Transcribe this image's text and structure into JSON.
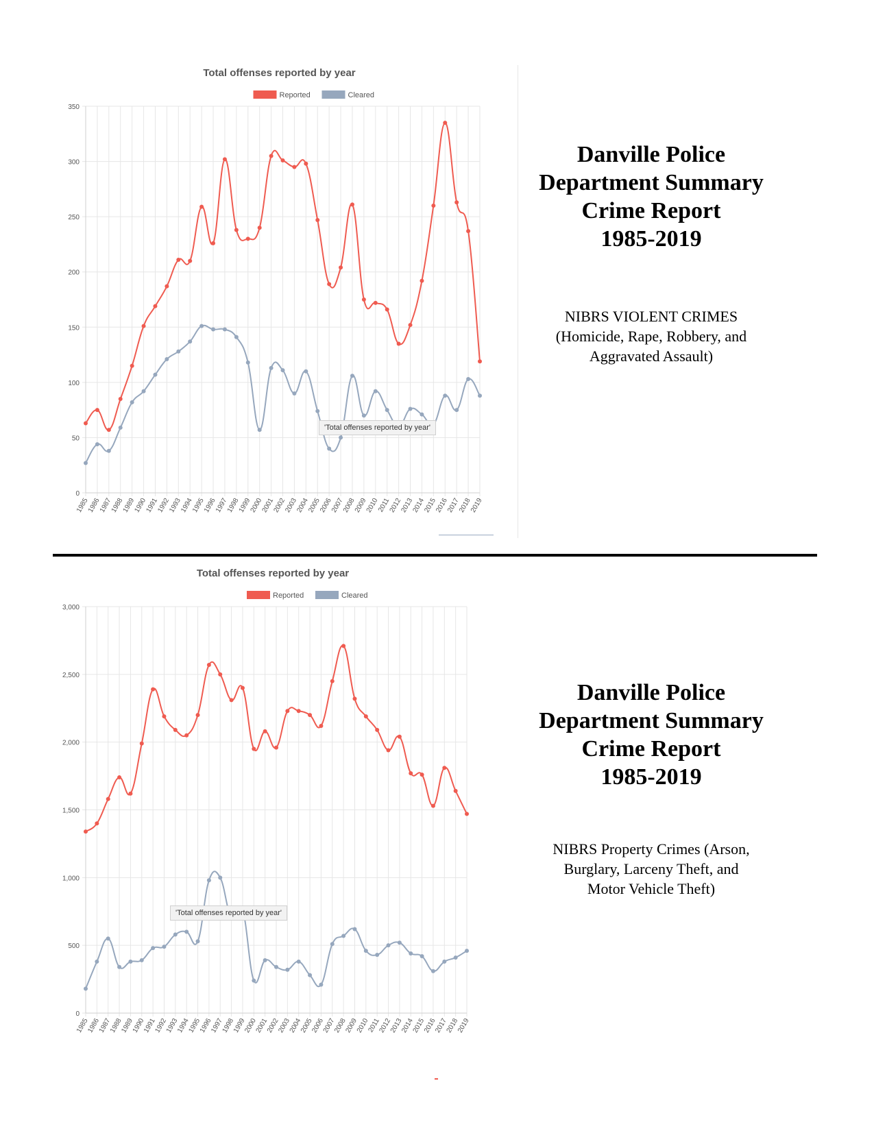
{
  "colors": {
    "reported": "#ef5b50",
    "cleared": "#96a7bd",
    "grid": "#e6e6e6",
    "axis_text": "#555555"
  },
  "panels": [
    {
      "title": "Danville Police Department Summary Crime Report 1985-2019",
      "title_lines": [
        "Danville Police",
        "Department Summary",
        "Crime Report",
        "1985-2019"
      ],
      "subtitle_lines": [
        "NIBRS VIOLENT CRIMES",
        "(Homicide, Rape, Robbery, and",
        "Aggravated Assault)"
      ]
    },
    {
      "title": "Danville Police Department Summary Crime Report 1985-2019",
      "title_lines": [
        "Danville Police",
        "Department Summary",
        "Crime Report",
        "1985-2019"
      ],
      "subtitle_lines": [
        "NIBRS Property Crimes (Arson,",
        "Burglary, Larceny Theft, and",
        "Motor Vehicle Theft)"
      ]
    }
  ],
  "tooltips": [
    "'Total offenses reported by year'",
    "'Total offenses reported by year'"
  ],
  "chart_data": [
    {
      "type": "line",
      "title": "Total offenses reported by year",
      "legend": "top-center",
      "grid": true,
      "categories": [
        "1985",
        "1986",
        "1987",
        "1988",
        "1989",
        "1990",
        "1991",
        "1992",
        "1993",
        "1994",
        "1995",
        "1996",
        "1997",
        "1998",
        "1999",
        "2000",
        "2001",
        "2002",
        "2003",
        "2004",
        "2005",
        "2006",
        "2007",
        "2008",
        "2009",
        "2010",
        "2011",
        "2012",
        "2013",
        "2014",
        "2015",
        "2016",
        "2017",
        "2018",
        "2019"
      ],
      "ylim": [
        0,
        350
      ],
      "yticks": [
        "0",
        "50",
        "100",
        "150",
        "200",
        "250",
        "300",
        "350"
      ],
      "ytick_values": [
        0,
        50,
        100,
        150,
        200,
        250,
        300,
        350
      ],
      "series": [
        {
          "name": "Reported",
          "values": [
            63,
            75,
            57,
            85,
            115,
            151,
            169,
            187,
            211,
            210,
            259,
            226,
            302,
            238,
            230,
            240,
            305,
            301,
            295,
            298,
            247,
            189,
            204,
            261,
            175,
            172,
            166,
            135,
            152,
            192,
            260,
            335,
            263,
            237,
            119
          ]
        },
        {
          "name": "Cleared",
          "values": [
            27,
            44,
            38,
            59,
            82,
            92,
            107,
            121,
            128,
            137,
            151,
            148,
            148,
            141,
            118,
            57,
            113,
            111,
            90,
            110,
            74,
            40,
            50,
            106,
            70,
            92,
            75,
            60,
            76,
            71,
            62,
            88,
            75,
            103,
            88
          ]
        }
      ]
    },
    {
      "type": "line",
      "title": "Total offenses reported by year",
      "legend": "top-center",
      "grid": true,
      "categories": [
        "1985",
        "1986",
        "1987",
        "1988",
        "1989",
        "1990",
        "1991",
        "1992",
        "1993",
        "1994",
        "1995",
        "1996",
        "1997",
        "1998",
        "1999",
        "2000",
        "2001",
        "2002",
        "2003",
        "2004",
        "2005",
        "2006",
        "2007",
        "2008",
        "2009",
        "2010",
        "2011",
        "2012",
        "2013",
        "2014",
        "2015",
        "2016",
        "2017",
        "2018",
        "2019"
      ],
      "ylim": [
        0,
        3000
      ],
      "yticks": [
        "0",
        "500",
        "1,000",
        "1,500",
        "2,000",
        "2,500",
        "3,000"
      ],
      "ytick_values": [
        0,
        500,
        1000,
        1500,
        2000,
        2500,
        3000
      ],
      "series": [
        {
          "name": "Reported",
          "values": [
            1340,
            1400,
            1580,
            1740,
            1620,
            1990,
            2390,
            2190,
            2090,
            2050,
            2200,
            2570,
            2500,
            2310,
            2400,
            1950,
            2080,
            1960,
            2230,
            2230,
            2200,
            2120,
            2450,
            2710,
            2320,
            2190,
            2090,
            1940,
            2040,
            1770,
            1760,
            1530,
            1810,
            1640,
            1470
          ]
        },
        {
          "name": "Cleared",
          "values": [
            180,
            380,
            550,
            340,
            380,
            390,
            480,
            490,
            580,
            600,
            530,
            980,
            1000,
            700,
            760,
            240,
            390,
            340,
            320,
            380,
            280,
            210,
            510,
            570,
            620,
            460,
            430,
            500,
            520,
            440,
            420,
            310,
            380,
            410,
            460
          ]
        }
      ]
    }
  ]
}
